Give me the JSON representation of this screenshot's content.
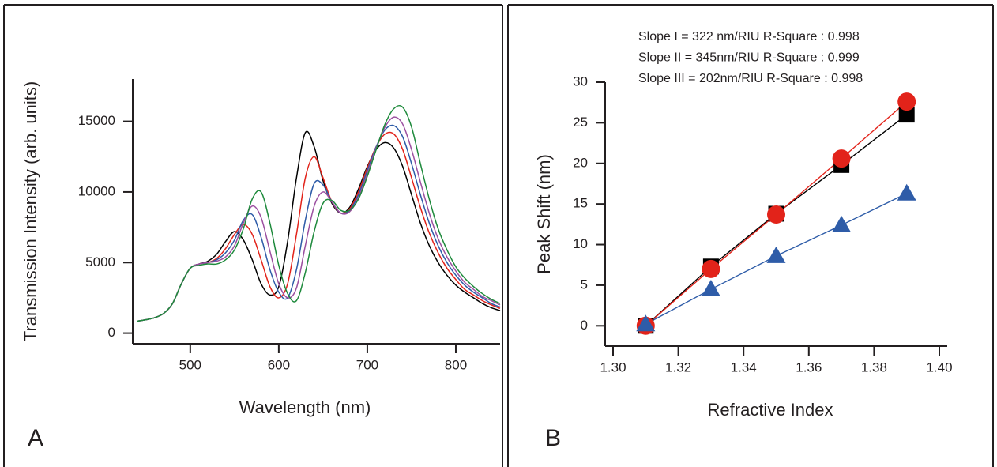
{
  "chart_data": [
    {
      "type": "line",
      "panel_label": "A",
      "x_label": "Wavelength (nm)",
      "y_label": "Transmission Intensity (arb. units)",
      "xlim": [
        435,
        850
      ],
      "ylim": [
        -750,
        18000
      ],
      "xticks": [
        500,
        600,
        700,
        800
      ],
      "yticks": [
        0,
        5000,
        10000,
        15000
      ],
      "x": [
        440,
        450,
        460,
        470,
        480,
        490,
        500,
        510,
        520,
        530,
        540,
        550,
        560,
        570,
        580,
        590,
        600,
        610,
        620,
        630,
        640,
        650,
        660,
        670,
        680,
        690,
        700,
        710,
        720,
        730,
        740,
        750,
        760,
        770,
        780,
        790,
        800,
        810,
        820,
        830,
        840,
        850
      ],
      "series": [
        {
          "color": "#000000",
          "values": [
            850,
            950,
            1100,
            1400,
            2100,
            3500,
            4600,
            4900,
            5100,
            5600,
            6500,
            7200,
            6600,
            5200,
            3500,
            2700,
            3300,
            6500,
            11000,
            14200,
            13200,
            10800,
            9200,
            8500,
            8900,
            10200,
            11800,
            13000,
            13500,
            13100,
            11800,
            9800,
            7800,
            6200,
            5000,
            4100,
            3400,
            2900,
            2500,
            2100,
            1800,
            1600
          ]
        },
        {
          "color": "#e2231a",
          "values": [
            850,
            950,
            1100,
            1400,
            2100,
            3500,
            4600,
            4900,
            5000,
            5300,
            6000,
            7000,
            7700,
            7000,
            5200,
            3300,
            2500,
            3500,
            7000,
            11000,
            12500,
            11000,
            9300,
            8500,
            8800,
            10000,
            11700,
            13200,
            14100,
            14100,
            13000,
            11000,
            8900,
            7100,
            5700,
            4600,
            3800,
            3100,
            2700,
            2300,
            2000,
            1750
          ]
        },
        {
          "color": "#2e5ca8",
          "values": [
            850,
            950,
            1100,
            1400,
            2100,
            3500,
            4600,
            4900,
            5000,
            5200,
            5700,
            6600,
            8000,
            8400,
            6800,
            4500,
            2900,
            2500,
            4500,
            8000,
            10600,
            10500,
            9300,
            8500,
            8700,
            9800,
            11500,
            13200,
            14400,
            14700,
            13900,
            12000,
            9800,
            7800,
            6200,
            5000,
            4100,
            3400,
            2900,
            2500,
            2100,
            1850
          ]
        },
        {
          "color": "#9b4fa0",
          "values": [
            850,
            950,
            1100,
            1400,
            2100,
            3500,
            4600,
            4900,
            5000,
            5100,
            5400,
            6200,
            7800,
            9000,
            8200,
            5800,
            3500,
            2500,
            3200,
            6200,
            9000,
            10000,
            9300,
            8500,
            8600,
            9600,
            11300,
            13100,
            14600,
            15300,
            14800,
            13000,
            10700,
            8500,
            6700,
            5400,
            4400,
            3600,
            3100,
            2600,
            2300,
            2000
          ]
        },
        {
          "color": "#1e8a3c",
          "values": [
            850,
            950,
            1100,
            1400,
            2100,
            3500,
            4600,
            4800,
            4900,
            4900,
            5200,
            5900,
            7400,
            9500,
            10000,
            7800,
            4800,
            2800,
            2300,
            4300,
            7200,
            9200,
            9400,
            8700,
            8700,
            9500,
            11100,
            13000,
            14800,
            15900,
            16000,
            14600,
            12000,
            9500,
            7400,
            5900,
            4700,
            3900,
            3300,
            2800,
            2400,
            2100
          ]
        }
      ]
    },
    {
      "type": "line",
      "panel_label": "B",
      "x_label": "Refractive Index",
      "y_label": "Peak Shift (nm)",
      "annotations": [
        "Slope I = 322 nm/RIU  R-Square : 0.998",
        "Slope II = 345nm/RIU  R-Square : 0.999",
        "Slope III = 202nm/RIU R-Square : 0.998"
      ],
      "xlim": [
        1.3,
        1.4
      ],
      "ylim": [
        -2.5,
        30
      ],
      "xticks": [
        {
          "value": 1.3,
          "label": "1.30"
        },
        1.32,
        1.34,
        1.36,
        1.38,
        {
          "value": 1.4,
          "label": "1.40"
        }
      ],
      "yticks": [
        0,
        5,
        10,
        15,
        20,
        25,
        30
      ],
      "x": [
        1.31,
        1.33,
        1.35,
        1.37,
        1.39
      ],
      "series": [
        {
          "color": "#000000",
          "marker": "square",
          "values": [
            0,
            7.3,
            13.8,
            19.8,
            26.0
          ]
        },
        {
          "color": "#e2231a",
          "marker": "circle",
          "values": [
            0,
            7.0,
            13.7,
            20.6,
            27.6
          ]
        },
        {
          "color": "#2e5ca8",
          "marker": "triangle",
          "values": [
            0.2,
            4.5,
            8.6,
            12.4,
            16.3
          ]
        }
      ]
    }
  ]
}
